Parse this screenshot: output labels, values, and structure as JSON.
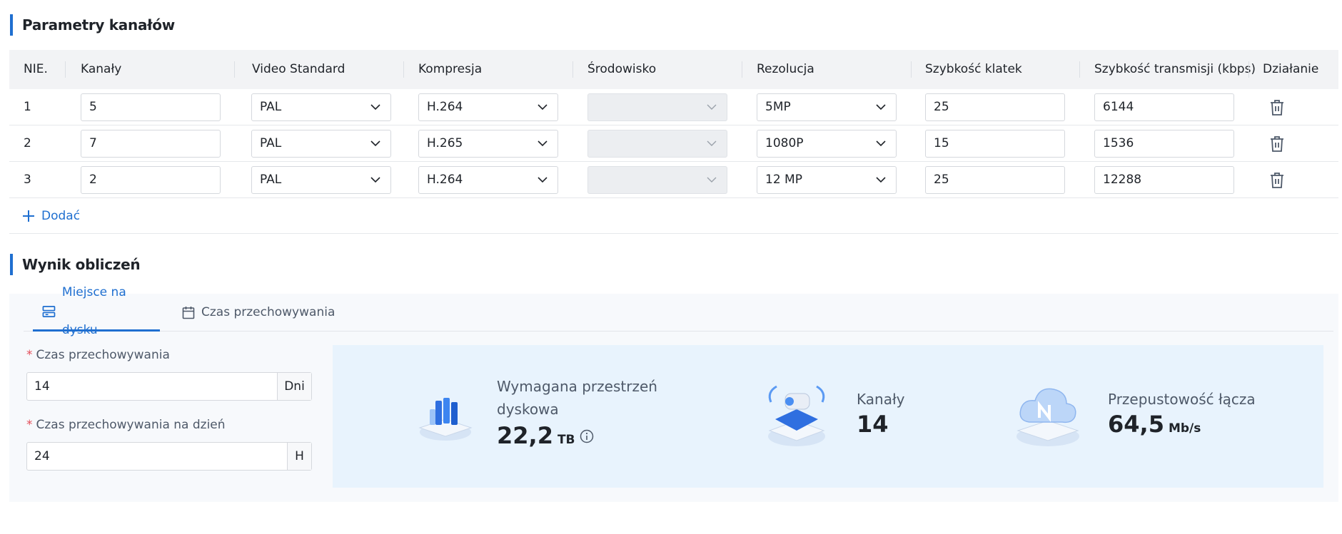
{
  "section1": {
    "title": "Parametry kanałów"
  },
  "table": {
    "headers": [
      "NIE.",
      "Kanały",
      "Video Standard",
      "Kompresja",
      "Środowisko",
      "Rezolucja",
      "Szybkość klatek",
      "Szybkość transmisji (kbps)",
      "Działanie"
    ],
    "rows": [
      {
        "no": "1",
        "channels": "5",
        "standard": "PAL",
        "compression": "H.264",
        "environment": "",
        "resolution": "5MP",
        "fps": "25",
        "bitrate": "6144"
      },
      {
        "no": "2",
        "channels": "7",
        "standard": "PAL",
        "compression": "H.265",
        "environment": "",
        "resolution": "1080P",
        "fps": "15",
        "bitrate": "1536"
      },
      {
        "no": "3",
        "channels": "2",
        "standard": "PAL",
        "compression": "H.264",
        "environment": "",
        "resolution": "12 MP",
        "fps": "25",
        "bitrate": "12288"
      }
    ],
    "add_label": "Dodać"
  },
  "section2": {
    "title": "Wynik obliczeń"
  },
  "tabs": [
    {
      "label": "Miejsce na dysku",
      "icon": "disk-icon",
      "active": true
    },
    {
      "label": "Czas przechowywania",
      "icon": "calendar-icon",
      "active": false
    }
  ],
  "form": {
    "retention_label": "Czas przechowywania",
    "retention_value": "14",
    "retention_unit": "Dni",
    "daily_label": "Czas przechowywania na dzień",
    "daily_value": "24",
    "daily_unit": "H"
  },
  "results": {
    "storage_label_1": "Wymagana przestrzeń",
    "storage_label_2": "dyskowa",
    "storage_value": "22,2",
    "storage_unit": "TB",
    "channels_label": "Kanały",
    "channels_value": "14",
    "bandwidth_label": "Przepustowość łącza",
    "bandwidth_value": "64,5",
    "bandwidth_unit": "Mb/s"
  },
  "colors": {
    "accent": "#1f6fd0",
    "result_bg": "#e8f3fd",
    "required": "#e34d59"
  }
}
